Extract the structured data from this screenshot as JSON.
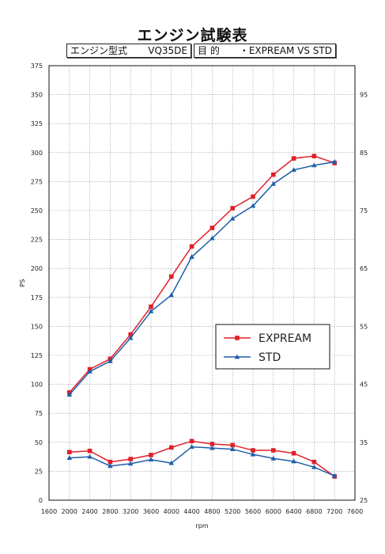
{
  "header": {
    "title": "エンジン試験表",
    "engine_label": "エンジン型式",
    "engine_value": "VQ35DE",
    "purpose_label": "目 的",
    "purpose_value": "・EXPREAM VS STD"
  },
  "chart_data": {
    "type": "line",
    "title": "エンジン試験表",
    "xlabel": "rpm",
    "ylabel": "PS",
    "y2label": "",
    "xlim": [
      1600,
      7600
    ],
    "ylim": [
      0,
      375
    ],
    "y2lim": [
      25,
      100
    ],
    "x_ticks": [
      1600,
      2000,
      2400,
      2800,
      3200,
      3600,
      4000,
      4400,
      4800,
      5200,
      5600,
      6000,
      6400,
      6800,
      7200,
      7600
    ],
    "y_ticks": [
      0,
      25,
      50,
      75,
      100,
      125,
      150,
      175,
      200,
      225,
      250,
      275,
      300,
      325,
      350,
      375
    ],
    "y2_ticks": [
      25,
      35,
      45,
      55,
      65,
      75,
      85,
      95
    ],
    "grid": true,
    "legend_position": "center-right",
    "x": [
      2000,
      2400,
      2800,
      3200,
      3600,
      4000,
      4400,
      4800,
      5200,
      5600,
      6000,
      6400,
      6800,
      7200
    ],
    "series": [
      {
        "name": "EXPREAM",
        "color": "#e0202a",
        "marker": "square",
        "axis": "left",
        "values": [
          93,
          113,
          122,
          143,
          167,
          193,
          219,
          235,
          252,
          262,
          281,
          295,
          297,
          291
        ]
      },
      {
        "name": "STD",
        "color": "#1f5fa8",
        "marker": "triangle",
        "axis": "left",
        "values": [
          91,
          111,
          120,
          140,
          163,
          177,
          210,
          226,
          243,
          254,
          273,
          285,
          289,
          292
        ]
      },
      {
        "name": "",
        "color": "#e0202a",
        "marker": "square",
        "axis": "right",
        "values": [
          33.3,
          33.5,
          31.6,
          32.1,
          32.8,
          34.1,
          35.2,
          34.7,
          34.5,
          33.6,
          33.6,
          33.1,
          31.6,
          29.1
        ]
      },
      {
        "name": "",
        "color": "#1f5fa8",
        "marker": "triangle",
        "axis": "right",
        "values": [
          32.3,
          32.5,
          30.9,
          31.3,
          32.0,
          31.4,
          34.2,
          34.0,
          33.8,
          32.9,
          32.2,
          31.7,
          30.7,
          29.2
        ]
      }
    ]
  }
}
